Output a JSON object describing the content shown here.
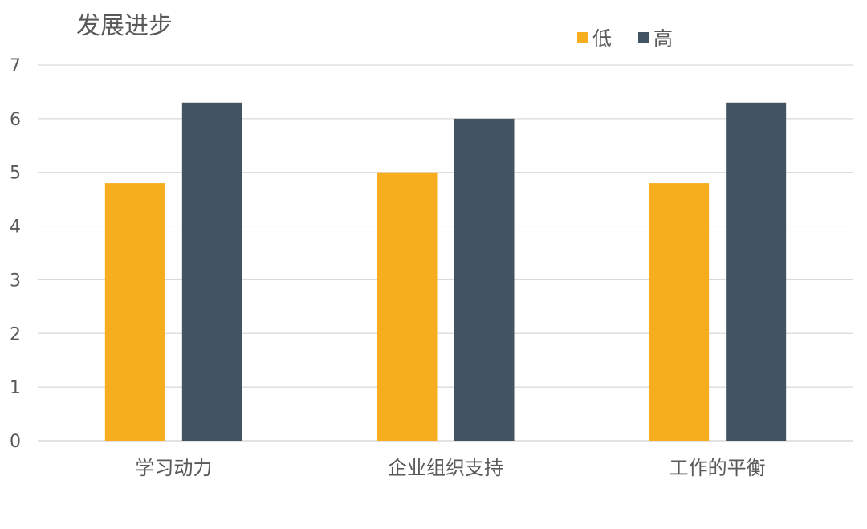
{
  "chart_data": {
    "type": "bar",
    "title": "发展进步",
    "categories": [
      "学习动力",
      "企业组织支持",
      "工作的平衡"
    ],
    "series": [
      {
        "name": "低",
        "color": "#F7AE1E",
        "values": [
          4.8,
          5.0,
          4.8
        ]
      },
      {
        "name": "高",
        "color": "#415461",
        "values": [
          6.3,
          6.0,
          6.3
        ]
      }
    ],
    "ylim": [
      0,
      7
    ],
    "yticks": [
      "0",
      "1",
      "2",
      "3",
      "4",
      "5",
      "6",
      "7"
    ],
    "grid": true,
    "legend": "top-right"
  }
}
